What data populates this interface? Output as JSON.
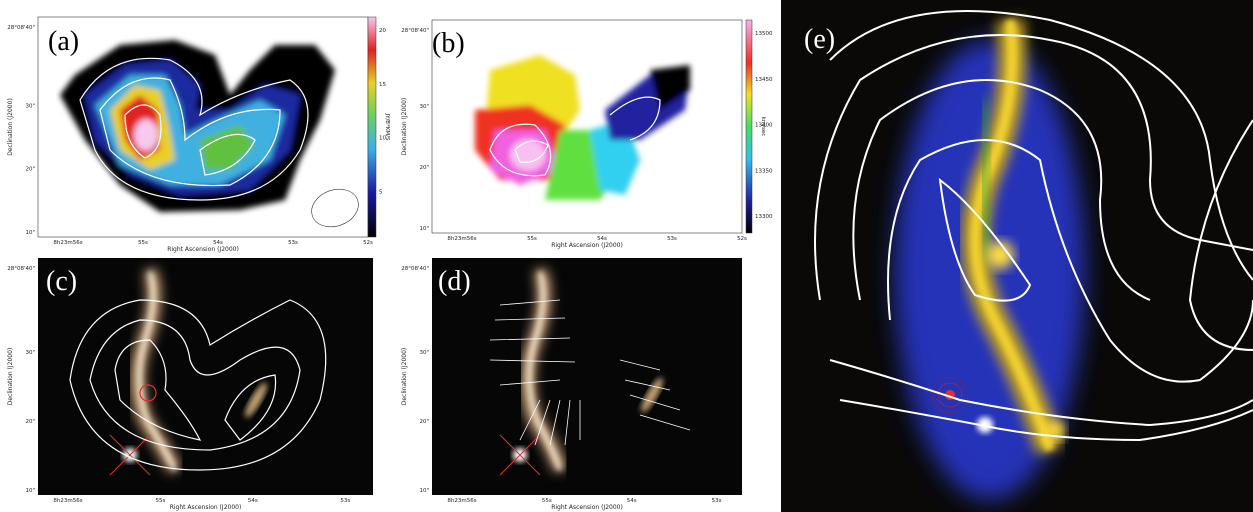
{
  "panels": [
    {
      "label": "(a)",
      "x_label": "Right Ascension (J2000)",
      "y_label": "Declination (J2000)",
      "x_ticks": [
        "8h23m56s",
        "55s",
        "54s",
        "53s",
        "52s"
      ],
      "y_ticks": [
        "28°08'40\"",
        "30\"",
        "20\"",
        "10\""
      ],
      "colorbar": {
        "label": "JY/B*KM/S",
        "ticks": [
          "20",
          "15",
          "10",
          "5"
        ]
      }
    },
    {
      "label": "(b)",
      "x_label": "Right Ascension (J2000)",
      "y_label": "Declination (J2000)",
      "x_ticks": [
        "8h23m56s",
        "55s",
        "54s",
        "53s",
        "52s"
      ],
      "y_ticks": [
        "28°08'40\"",
        "30\"",
        "20\"",
        "10\""
      ],
      "colorbar": {
        "label": "km/sec",
        "ticks": [
          "13500",
          "13450",
          "13400",
          "13350",
          "13300"
        ]
      }
    },
    {
      "label": "(c)",
      "x_label": "Right Ascension (J2000)",
      "y_label": "Declination (J2000)",
      "x_ticks": [
        "8h23m56s",
        "55s",
        "54s",
        "53s"
      ],
      "y_ticks": [
        "28°08'40\"",
        "30\"",
        "20\"",
        "10\""
      ]
    },
    {
      "label": "(d)",
      "x_label": "Right Ascension (J2000)",
      "y_label": "Declination (J2000)",
      "x_ticks": [
        "8h23m56s",
        "55s",
        "54s",
        "53s"
      ],
      "y_ticks": [
        "28°08'40\"",
        "30\"",
        "20\"",
        "10\""
      ]
    },
    {
      "label": "(e)"
    }
  ]
}
